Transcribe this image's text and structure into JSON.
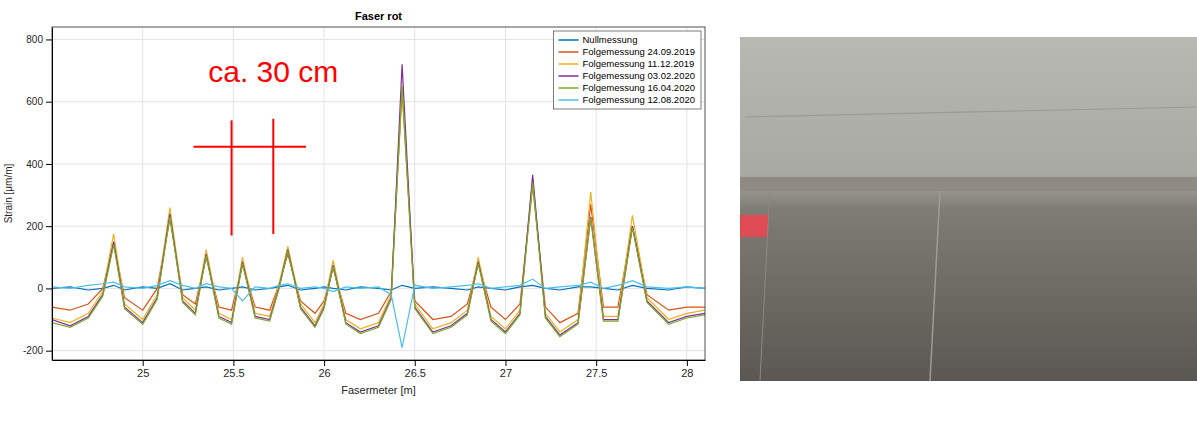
{
  "chart_data": {
    "type": "line",
    "title": "Faser rot",
    "x_label": "Fasermeter [m]",
    "y_label": "Strain [μm/m]",
    "xlim": [
      24.5,
      28.1
    ],
    "ylim": [
      -230,
      840
    ],
    "xticks": [
      25,
      25.5,
      26,
      26.5,
      27,
      27.5,
      28
    ],
    "yticks": [
      -200,
      0,
      200,
      400,
      600,
      800
    ],
    "grid": true,
    "legend": "top-right",
    "x": [
      24.5,
      24.6,
      24.7,
      24.78,
      24.84,
      24.9,
      25.0,
      25.08,
      25.15,
      25.22,
      25.29,
      25.35,
      25.42,
      25.49,
      25.55,
      25.62,
      25.7,
      25.75,
      25.8,
      25.87,
      25.95,
      26.0,
      26.05,
      26.12,
      26.2,
      26.3,
      26.37,
      26.43,
      26.5,
      26.6,
      26.7,
      26.79,
      26.85,
      26.92,
      27.0,
      27.08,
      27.15,
      27.22,
      27.3,
      27.4,
      27.47,
      27.54,
      27.62,
      27.7,
      27.78,
      27.9,
      28.0,
      28.1
    ],
    "series": [
      {
        "name": "Nullmessung",
        "color": "#0072bd",
        "values": [
          0,
          5,
          -5,
          0,
          10,
          -5,
          5,
          0,
          15,
          -5,
          0,
          5,
          -5,
          0,
          5,
          -5,
          0,
          5,
          10,
          -5,
          0,
          5,
          0,
          -5,
          5,
          0,
          -5,
          10,
          0,
          5,
          0,
          -5,
          5,
          0,
          -5,
          5,
          10,
          0,
          -5,
          5,
          5,
          0,
          -5,
          10,
          0,
          -5,
          5,
          0
        ]
      },
      {
        "name": "Folgemessung 24.09.2019",
        "color": "#d95319",
        "values": [
          -60,
          -70,
          -50,
          0,
          145,
          -30,
          -70,
          0,
          225,
          -20,
          -50,
          100,
          -60,
          -70,
          75,
          -60,
          -70,
          10,
          110,
          -40,
          -80,
          -40,
          65,
          -80,
          -100,
          -80,
          -10,
          640,
          -40,
          -100,
          -90,
          -50,
          80,
          -60,
          -100,
          -50,
          330,
          -60,
          -110,
          -80,
          270,
          -60,
          -60,
          200,
          -20,
          -70,
          -60,
          -60
        ]
      },
      {
        "name": "Folgemessung 11.12.2019",
        "color": "#edb120",
        "values": [
          -95,
          -110,
          -80,
          -10,
          175,
          -50,
          -100,
          -20,
          260,
          -30,
          -70,
          125,
          -80,
          -100,
          100,
          -80,
          -90,
          10,
          135,
          -50,
          -110,
          -50,
          90,
          -100,
          -130,
          -110,
          -20,
          650,
          -50,
          -130,
          -110,
          -70,
          100,
          -90,
          -130,
          -70,
          350,
          -80,
          -140,
          -100,
          310,
          -90,
          -90,
          235,
          -30,
          -100,
          -80,
          -70
        ]
      },
      {
        "name": "Folgemessung 03.02.2020",
        "color": "#7e2f8e",
        "values": [
          -100,
          -120,
          -90,
          -20,
          150,
          -60,
          -110,
          -30,
          240,
          -40,
          -80,
          110,
          -90,
          -110,
          85,
          -90,
          -100,
          0,
          125,
          -60,
          -120,
          -60,
          75,
          -110,
          -140,
          -120,
          -30,
          720,
          -60,
          -140,
          -120,
          -80,
          85,
          -100,
          -140,
          -80,
          365,
          -90,
          -150,
          -110,
          230,
          -100,
          -100,
          200,
          -40,
          -110,
          -90,
          -80
        ]
      },
      {
        "name": "Folgemessung 16.04.2020",
        "color": "#77ac30",
        "values": [
          -110,
          -125,
          -95,
          -25,
          140,
          -65,
          -115,
          -35,
          230,
          -45,
          -85,
          105,
          -95,
          -115,
          80,
          -95,
          -105,
          -5,
          120,
          -65,
          -125,
          -65,
          70,
          -115,
          -145,
          -125,
          -35,
          650,
          -65,
          -145,
          -125,
          -85,
          80,
          -105,
          -145,
          -85,
          340,
          -95,
          -155,
          -115,
          225,
          -105,
          -105,
          195,
          -45,
          -115,
          -95,
          -85
        ]
      },
      {
        "name": "Folgemessung 12.08.2020",
        "color": "#4dbeee",
        "values": [
          5,
          0,
          10,
          15,
          20,
          5,
          0,
          10,
          25,
          10,
          0,
          15,
          5,
          0,
          -40,
          5,
          0,
          10,
          15,
          0,
          5,
          0,
          -10,
          5,
          0,
          5,
          -20,
          -190,
          10,
          0,
          5,
          10,
          15,
          0,
          5,
          10,
          30,
          0,
          5,
          10,
          20,
          0,
          10,
          25,
          5,
          0,
          5,
          0
        ]
      }
    ],
    "annotations": [
      {
        "text": "ca. 30 cm",
        "x": 25.72,
        "y": 690,
        "color": "#ff0000",
        "lines": [
          {
            "x": [
              25.28,
              25.9
            ],
            "y": [
              455,
              455
            ]
          },
          {
            "x": [
              25.49,
              25.49
            ],
            "y": [
              170,
              540
            ]
          },
          {
            "x": [
              25.72,
              25.72
            ],
            "y": [
              175,
              545
            ]
          }
        ]
      }
    ]
  }
}
